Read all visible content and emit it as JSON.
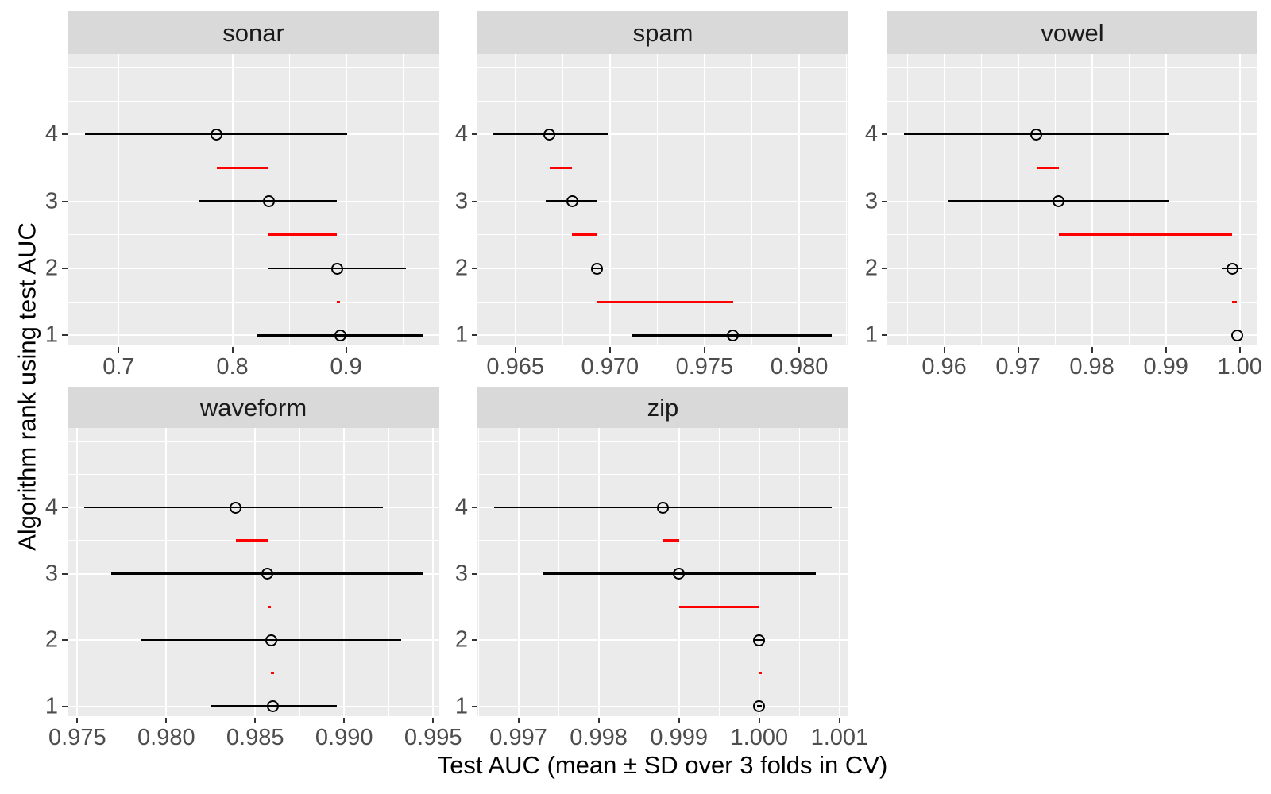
{
  "figure": {
    "x_axis_title": "Test AUC (mean ± SD over 3 folds in CV)",
    "y_axis_title": "Algorithm rank using test AUC",
    "colors": {
      "background": "#FFFFFF",
      "panel_background": "#EBEBEB",
      "strip_background": "#D9D9D9",
      "gridline": "#FFFFFF",
      "point_and_errorbar": "#000000",
      "gap_segment": "#FF0000",
      "axis_text": "#4D4D4D",
      "strip_text": "#1A1A1A"
    }
  },
  "chart_data": {
    "type": "scatter",
    "subtype": "faceted horizontal errorbar (mean ± SD) with open-circle means and red rank-gap segments at half ranks",
    "xlabel": "Test AUC (mean ± SD over 3 folds in CV)",
    "ylabel": "Algorithm rank using test AUC",
    "legend": "none",
    "grid": "on",
    "y_axis": {
      "domain": [
        0.85,
        5.2
      ],
      "breaks": [
        4,
        3,
        2,
        1
      ],
      "labels": [
        "4",
        "3",
        "2",
        "1"
      ],
      "minor_breaks": [
        1.5,
        2.5,
        3.5,
        4.5
      ],
      "unlabeled_major_breaks": [
        5
      ]
    },
    "facets": [
      {
        "label": "sonar",
        "x_domain": [
          0.655,
          0.982
        ],
        "x_tick_values": [
          0.7,
          0.8,
          0.9
        ],
        "x_tick_labels": [
          "0.7",
          "0.8",
          "0.9"
        ],
        "points": [
          {
            "rank": 4,
            "mean": 0.786,
            "lo": 0.67,
            "hi": 0.901
          },
          {
            "rank": 3,
            "mean": 0.832,
            "lo": 0.771,
            "hi": 0.892
          },
          {
            "rank": 2,
            "mean": 0.892,
            "lo": 0.831,
            "hi": 0.953
          },
          {
            "rank": 1,
            "mean": 0.895,
            "lo": 0.822,
            "hi": 0.968
          }
        ],
        "gap_segments": [
          {
            "y": 3.5,
            "x0": 0.786,
            "x1": 0.832
          },
          {
            "y": 2.5,
            "x0": 0.832,
            "x1": 0.892
          },
          {
            "y": 1.5,
            "x0": 0.892,
            "x1": 0.895
          }
        ]
      },
      {
        "label": "spam",
        "x_domain": [
          0.963,
          0.9826
        ],
        "x_tick_values": [
          0.965,
          0.97,
          0.975,
          0.98
        ],
        "x_tick_labels": [
          "0.965",
          "0.970",
          "0.975",
          "0.980"
        ],
        "points": [
          {
            "rank": 4,
            "mean": 0.9668,
            "lo": 0.9638,
            "hi": 0.9699
          },
          {
            "rank": 3,
            "mean": 0.968,
            "lo": 0.9666,
            "hi": 0.9693
          },
          {
            "rank": 2,
            "mean": 0.9693,
            "lo": 0.969,
            "hi": 0.9696
          },
          {
            "rank": 1,
            "mean": 0.9765,
            "lo": 0.9712,
            "hi": 0.9817
          }
        ],
        "gap_segments": [
          {
            "y": 3.5,
            "x0": 0.9668,
            "x1": 0.968
          },
          {
            "y": 2.5,
            "x0": 0.968,
            "x1": 0.9693
          },
          {
            "y": 1.5,
            "x0": 0.9693,
            "x1": 0.9765
          }
        ]
      },
      {
        "label": "vowel",
        "x_domain": [
          0.9523,
          1.0024
        ],
        "x_tick_values": [
          0.96,
          0.97,
          0.98,
          0.99,
          1.0
        ],
        "x_tick_labels": [
          "0.96",
          "0.97",
          "0.98",
          "0.99",
          "1.00"
        ],
        "points": [
          {
            "rank": 4,
            "mean": 0.9725,
            "lo": 0.9545,
            "hi": 0.9904
          },
          {
            "rank": 3,
            "mean": 0.9755,
            "lo": 0.9605,
            "hi": 0.9904
          },
          {
            "rank": 2,
            "mean": 0.999,
            "lo": 0.9976,
            "hi": 1.0002
          },
          {
            "rank": 1,
            "mean": 0.9996,
            "lo": 0.9996,
            "hi": 0.9996
          }
        ],
        "gap_segments": [
          {
            "y": 3.5,
            "x0": 0.9725,
            "x1": 0.9755
          },
          {
            "y": 2.5,
            "x0": 0.9755,
            "x1": 0.999
          },
          {
            "y": 1.5,
            "x0": 0.999,
            "x1": 0.9996
          }
        ]
      },
      {
        "label": "waveform",
        "x_domain": [
          0.97445,
          0.99535
        ],
        "x_tick_values": [
          0.975,
          0.98,
          0.985,
          0.99,
          0.995
        ],
        "x_tick_labels": [
          "0.975",
          "0.980",
          "0.985",
          "0.990",
          "0.995"
        ],
        "points": [
          {
            "rank": 4,
            "mean": 0.9839,
            "lo": 0.9754,
            "hi": 0.9922
          },
          {
            "rank": 3,
            "mean": 0.9857,
            "lo": 0.9769,
            "hi": 0.9944
          },
          {
            "rank": 2,
            "mean": 0.9859,
            "lo": 0.9786,
            "hi": 0.9932
          },
          {
            "rank": 1,
            "mean": 0.986,
            "lo": 0.9825,
            "hi": 0.9896
          }
        ],
        "gap_segments": [
          {
            "y": 3.5,
            "x0": 0.9839,
            "x1": 0.9857
          },
          {
            "y": 2.5,
            "x0": 0.9857,
            "x1": 0.9859
          },
          {
            "y": 1.5,
            "x0": 0.9859,
            "x1": 0.986
          }
        ]
      },
      {
        "label": "zip",
        "x_domain": [
          0.99649,
          1.00111
        ],
        "x_tick_values": [
          0.997,
          0.998,
          0.999,
          1.0,
          1.001
        ],
        "x_tick_labels": [
          "0.997",
          "0.998",
          "0.999",
          "1.000",
          "1.001"
        ],
        "points": [
          {
            "rank": 4,
            "mean": 0.9988,
            "lo": 0.9967,
            "hi": 1.0009
          },
          {
            "rank": 3,
            "mean": 0.999,
            "lo": 0.9973,
            "hi": 1.0007
          },
          {
            "rank": 2,
            "mean": 1.0,
            "lo": 0.99995,
            "hi": 1.00005
          },
          {
            "rank": 1,
            "mean": 1.0,
            "lo": 0.99997,
            "hi": 1.00003
          }
        ],
        "gap_segments": [
          {
            "y": 3.5,
            "x0": 0.9988,
            "x1": 0.999
          },
          {
            "y": 2.5,
            "x0": 0.999,
            "x1": 1.0
          },
          {
            "y": 1.5,
            "x0": 1.0,
            "x1": 1.0
          }
        ]
      }
    ]
  }
}
